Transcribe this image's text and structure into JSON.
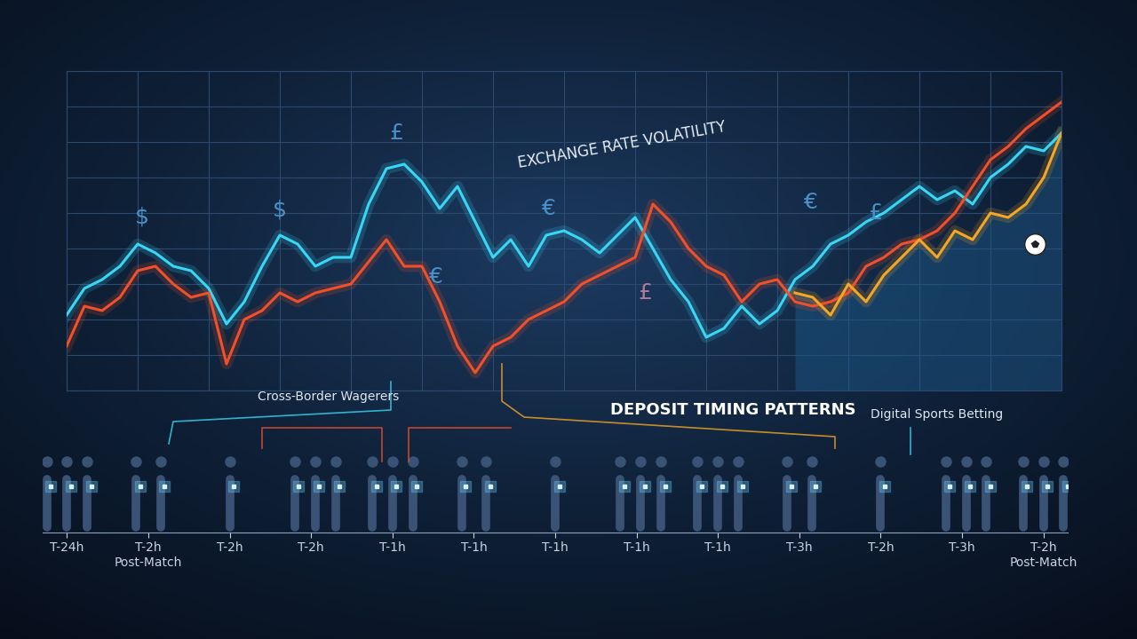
{
  "chart_data": [
    {
      "type": "line",
      "x": [
        0,
        1,
        2,
        3,
        4,
        5,
        6,
        7,
        8,
        9,
        10,
        11,
        12,
        13,
        14,
        15,
        16,
        17,
        18,
        19,
        20,
        21,
        22,
        23,
        24,
        25,
        26,
        27,
        28,
        29,
        30,
        31,
        32,
        33,
        34,
        35,
        36,
        37,
        38,
        39,
        40,
        41,
        42,
        43,
        44,
        45,
        46,
        47,
        48,
        49,
        50,
        51,
        52,
        53,
        54,
        55,
        56
      ],
      "series": [
        {
          "color": "#3ad6f5",
          "values": [
            365,
            395,
            405,
            420,
            445,
            435,
            420,
            415,
            395,
            355,
            380,
            420,
            455,
            445,
            420,
            430,
            430,
            490,
            530,
            535,
            515,
            485,
            510,
            470,
            430,
            450,
            420,
            455,
            460,
            450,
            435,
            455,
            475,
            440,
            405,
            380,
            340,
            350,
            375,
            355,
            370,
            405,
            420,
            445,
            455,
            470,
            480,
            495,
            510,
            495,
            505,
            490,
            520,
            535,
            555,
            550,
            570
          ]
        },
        {
          "color": "#f0502a",
          "values": [
            330,
            375,
            370,
            385,
            415,
            420,
            400,
            385,
            390,
            310,
            360,
            370,
            390,
            380,
            390,
            395,
            400,
            425,
            450,
            420,
            420,
            380,
            330,
            300,
            330,
            340,
            360,
            370,
            380,
            400,
            410,
            420,
            430,
            490,
            470,
            440,
            420,
            410,
            380,
            400,
            405,
            380,
            375,
            380,
            390,
            420,
            430,
            445,
            450,
            460,
            480,
            510,
            540,
            555,
            575,
            590,
            605
          ]
        },
        {
          "color": "#f5a623",
          "values": [
            null,
            null,
            null,
            null,
            null,
            null,
            null,
            null,
            null,
            null,
            null,
            null,
            null,
            null,
            null,
            null,
            null,
            null,
            null,
            null,
            null,
            null,
            null,
            null,
            null,
            null,
            null,
            null,
            null,
            null,
            null,
            null,
            null,
            null,
            null,
            null,
            null,
            null,
            null,
            null,
            null,
            390,
            385,
            365,
            400,
            380,
            410,
            430,
            450,
            430,
            460,
            450,
            480,
            475,
            490,
            520,
            570
          ]
        }
      ],
      "xlim": [
        0,
        56
      ],
      "ylim": [
        280,
        640
      ],
      "xticks": [
        0,
        4,
        8,
        12,
        16,
        20,
        24,
        28,
        32,
        36,
        40,
        44,
        48,
        52,
        56
      ],
      "yticks": [
        280,
        320,
        360,
        400,
        440,
        480,
        520,
        560,
        600,
        640
      ],
      "grid": true,
      "tick_labels": false,
      "annotations": [
        "EXCHANGE RATE VOLATILITY",
        "$",
        "$",
        "£",
        "€",
        "€",
        "£",
        "€",
        "£"
      ]
    },
    {
      "type": "timeline",
      "categories": [
        "T-24h",
        "T-2h\nPost-Match",
        "T-2h",
        "T-2h",
        "T-1h",
        "T-1h",
        "T-1h",
        "T-1h",
        "T-1h",
        "T-3h",
        "T-2h",
        "T-3h",
        "T-2h\nPost-Match"
      ],
      "tick_labels": "x",
      "annotations": [
        "Cross-Border Wagerers",
        "DEPOSIT TIMING PATTERNS",
        "Digital Sports Betting"
      ]
    }
  ]
}
